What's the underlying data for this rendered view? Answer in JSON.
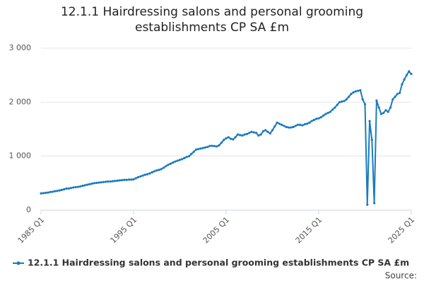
{
  "chart_data": {
    "type": "line",
    "title": "12.1.1 Hairdressing salons and personal grooming establishments CP SA £m",
    "source": "Source:",
    "x": [
      1985,
      1985.25,
      1985.5,
      1985.75,
      1986,
      1986.25,
      1986.5,
      1986.75,
      1987,
      1987.25,
      1987.5,
      1987.75,
      1988,
      1988.25,
      1988.5,
      1988.75,
      1989,
      1989.25,
      1989.5,
      1989.75,
      1990,
      1990.25,
      1990.5,
      1990.75,
      1991,
      1991.25,
      1991.5,
      1991.75,
      1992,
      1992.25,
      1992.5,
      1992.75,
      1993,
      1993.25,
      1993.5,
      1993.75,
      1994,
      1994.25,
      1994.5,
      1994.75,
      1995,
      1995.25,
      1995.5,
      1995.75,
      1996,
      1996.25,
      1996.5,
      1996.75,
      1997,
      1997.25,
      1997.5,
      1997.75,
      1998,
      1998.25,
      1998.5,
      1998.75,
      1999,
      1999.25,
      1999.5,
      1999.75,
      2000,
      2000.25,
      2000.5,
      2000.75,
      2001,
      2001.25,
      2001.5,
      2001.75,
      2002,
      2002.25,
      2002.5,
      2002.75,
      2003,
      2003.25,
      2003.5,
      2003.75,
      2004,
      2004.25,
      2004.5,
      2004.75,
      2005,
      2005.25,
      2005.5,
      2005.75,
      2006,
      2006.25,
      2006.5,
      2006.75,
      2007,
      2007.25,
      2007.5,
      2007.75,
      2008,
      2008.25,
      2008.5,
      2008.75,
      2009,
      2009.25,
      2009.5,
      2009.75,
      2010,
      2010.25,
      2010.5,
      2010.75,
      2011,
      2011.25,
      2011.5,
      2011.75,
      2012,
      2012.25,
      2012.5,
      2012.75,
      2013,
      2013.25,
      2013.5,
      2013.75,
      2014,
      2014.25,
      2014.5,
      2014.75,
      2015,
      2015.25,
      2015.5,
      2015.75,
      2016,
      2016.25,
      2016.5,
      2016.75,
      2017,
      2017.25,
      2017.5,
      2017.75,
      2018,
      2018.25,
      2018.5,
      2018.75,
      2019,
      2019.25,
      2019.5,
      2019.75,
      2020,
      2020.25,
      2020.5,
      2020.75,
      2021,
      2021.25,
      2021.5,
      2021.75,
      2022,
      2022.25,
      2022.5,
      2022.75,
      2023,
      2023.25,
      2023.5,
      2023.75,
      2024,
      2024.25,
      2024.5,
      2024.75,
      2025
    ],
    "series": [
      {
        "name": "12.1.1 Hairdressing salons and personal grooming establishments CP SA £m",
        "color": "#1a7bbf",
        "values": [
          310,
          315,
          320,
          325,
          335,
          340,
          350,
          355,
          365,
          375,
          385,
          400,
          400,
          410,
          420,
          425,
          430,
          440,
          450,
          460,
          470,
          480,
          490,
          500,
          505,
          510,
          515,
          520,
          525,
          530,
          530,
          535,
          540,
          545,
          550,
          555,
          560,
          560,
          565,
          565,
          570,
          590,
          610,
          625,
          640,
          655,
          665,
          680,
          700,
          720,
          735,
          745,
          760,
          785,
          815,
          840,
          860,
          880,
          900,
          915,
          930,
          945,
          965,
          985,
          1000,
          1040,
          1080,
          1120,
          1130,
          1140,
          1150,
          1160,
          1170,
          1190,
          1190,
          1185,
          1180,
          1200,
          1250,
          1300,
          1330,
          1350,
          1320,
          1310,
          1350,
          1400,
          1390,
          1380,
          1400,
          1410,
          1430,
          1450,
          1440,
          1430,
          1380,
          1400,
          1460,
          1480,
          1450,
          1420,
          1480,
          1550,
          1620,
          1600,
          1580,
          1560,
          1540,
          1530,
          1530,
          1540,
          1560,
          1580,
          1580,
          1570,
          1590,
          1600,
          1620,
          1650,
          1670,
          1690,
          1700,
          1720,
          1750,
          1780,
          1800,
          1820,
          1860,
          1900,
          1950,
          2000,
          2010,
          2020,
          2050,
          2100,
          2150,
          2180,
          2200,
          2210,
          2220,
          2050,
          1960,
          100,
          1650,
          1300,
          130,
          2030,
          1900,
          1780,
          1800,
          1850,
          1820,
          1900,
          2050,
          2100,
          2150,
          2170,
          2330,
          2420,
          2500,
          2570,
          2520
        ]
      }
    ],
    "xlim": [
      1985,
      2025
    ],
    "xticks": [
      {
        "value": 1985,
        "label": "1985 Q1"
      },
      {
        "value": 1995,
        "label": "1995 Q1"
      },
      {
        "value": 2005,
        "label": "2005 Q1"
      },
      {
        "value": 2015,
        "label": "2015 Q1"
      },
      {
        "value": 2025,
        "label": "2025 Q1"
      }
    ],
    "ylim": [
      0,
      3000
    ],
    "yticks": [
      0,
      {
        "value": 1000,
        "label": "1 000"
      },
      {
        "value": 2000,
        "label": "2 000"
      },
      {
        "value": 3000,
        "label": "3 000"
      }
    ],
    "grid": true,
    "legend": "bottom"
  }
}
